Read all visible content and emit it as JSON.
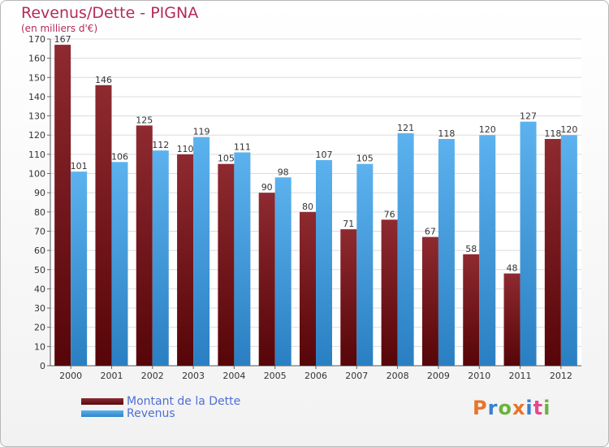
{
  "title": "Revenus/Dette - PIGNA",
  "subtitle": "(en milliers d'€)",
  "logo": {
    "text": "Proxiti",
    "colors": [
      "#e8742a",
      "#3a7fd0",
      "#6ab23e",
      "#e8742a",
      "#3a7fd0",
      "#e24a8c",
      "#6ab23e"
    ]
  },
  "chart_data": {
    "type": "bar",
    "categories": [
      "2000",
      "2001",
      "2002",
      "2003",
      "2004",
      "2005",
      "2006",
      "2007",
      "2008",
      "2009",
      "2010",
      "2011",
      "2012"
    ],
    "series": [
      {
        "name": "Montant de la Dette",
        "color": "#7a1a20",
        "values": [
          167,
          146,
          125,
          110,
          105,
          90,
          80,
          71,
          76,
          67,
          58,
          48,
          118
        ]
      },
      {
        "name": "Revenus",
        "color": "#3c9de0",
        "values": [
          101,
          106,
          112,
          119,
          111,
          98,
          107,
          105,
          121,
          118,
          120,
          127,
          120
        ]
      }
    ],
    "yticks": [
      0,
      10,
      20,
      30,
      40,
      50,
      60,
      70,
      80,
      90,
      100,
      110,
      120,
      130,
      140,
      150,
      160,
      170
    ],
    "ylim": [
      0,
      170
    ],
    "grid": true,
    "legend": "bottom-left"
  }
}
